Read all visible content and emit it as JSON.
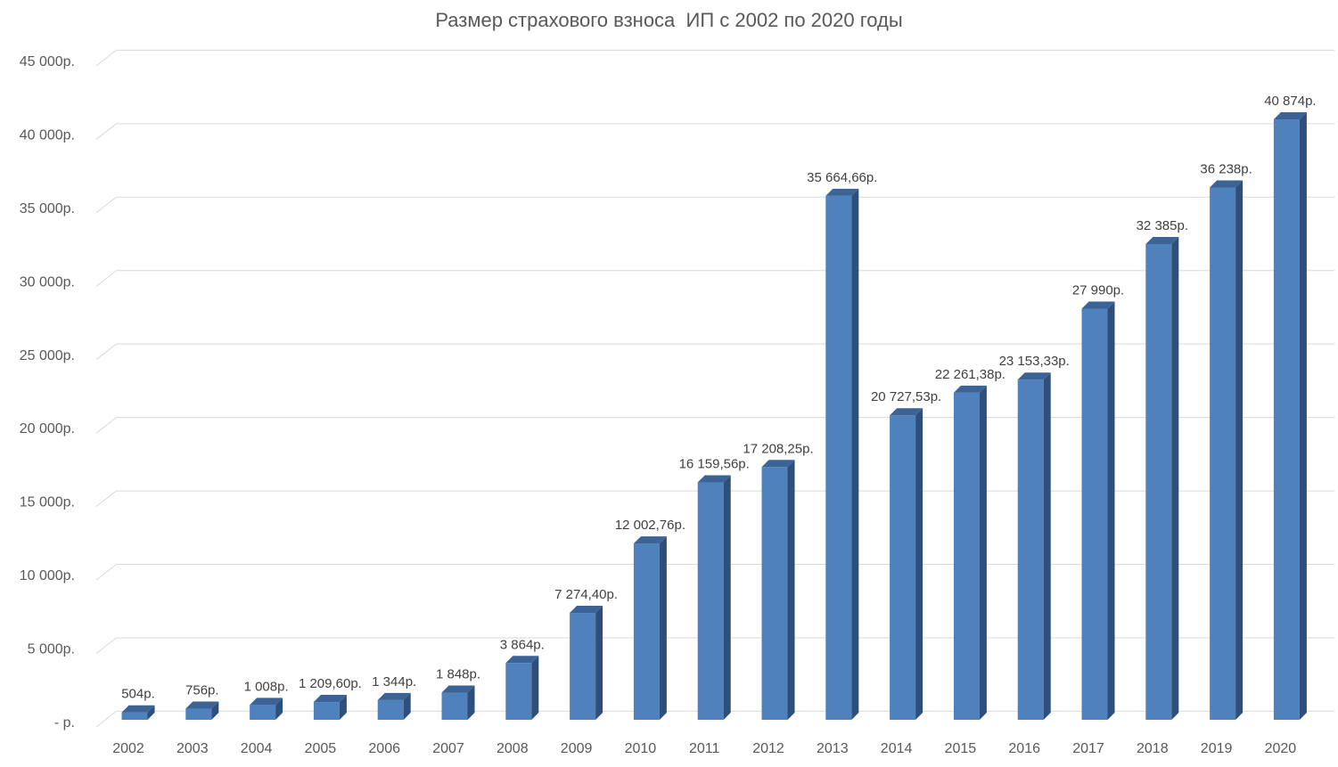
{
  "chart_data": {
    "type": "bar",
    "title": "Размер страхового взноса  ИП с 2002 по 2020 годы",
    "xlabel": "",
    "ylabel": "",
    "ylim": [
      0,
      45000
    ],
    "y_ticks": [
      0,
      5000,
      10000,
      15000,
      20000,
      25000,
      30000,
      35000,
      40000,
      45000
    ],
    "y_tick_labels": [
      " -  р.",
      "5 000р.",
      "10 000р.",
      "15 000р.",
      "20 000р.",
      "25 000р.",
      "30 000р.",
      "35 000р.",
      "40 000р.",
      "45 000р."
    ],
    "grid": true,
    "legend": "none",
    "bar_color": "#4f81bd",
    "bar_side_color": "#2f4f7a",
    "bar_top_color": "#3c6396",
    "categories": [
      "2002",
      "2003",
      "2004",
      "2005",
      "2006",
      "2007",
      "2008",
      "2009",
      "2010",
      "2011",
      "2012",
      "2013",
      "2014",
      "2015",
      "2016",
      "2017",
      "2018",
      "2019",
      "2020"
    ],
    "values": [
      504,
      756,
      1008,
      1209.6,
      1344,
      1848,
      3864,
      7274.4,
      12002.76,
      16159.56,
      17208.25,
      35664.66,
      20727.53,
      22261.38,
      23153.33,
      27990,
      32385,
      36238,
      40874
    ],
    "data_labels": [
      "504р.",
      "756р.",
      "1 008р.",
      "1 209,60р.",
      "1 344р.",
      "1 848р.",
      "3 864р.",
      "7 274,40р.",
      "12 002,76р.",
      "16 159,56р.",
      "17 208,25р.",
      "35 664,66р.",
      "20 727,53р.",
      "22 261,38р.",
      "23 153,33р.",
      "27 990р.",
      "32 385р.",
      "36 238р.",
      "40 874р."
    ]
  }
}
